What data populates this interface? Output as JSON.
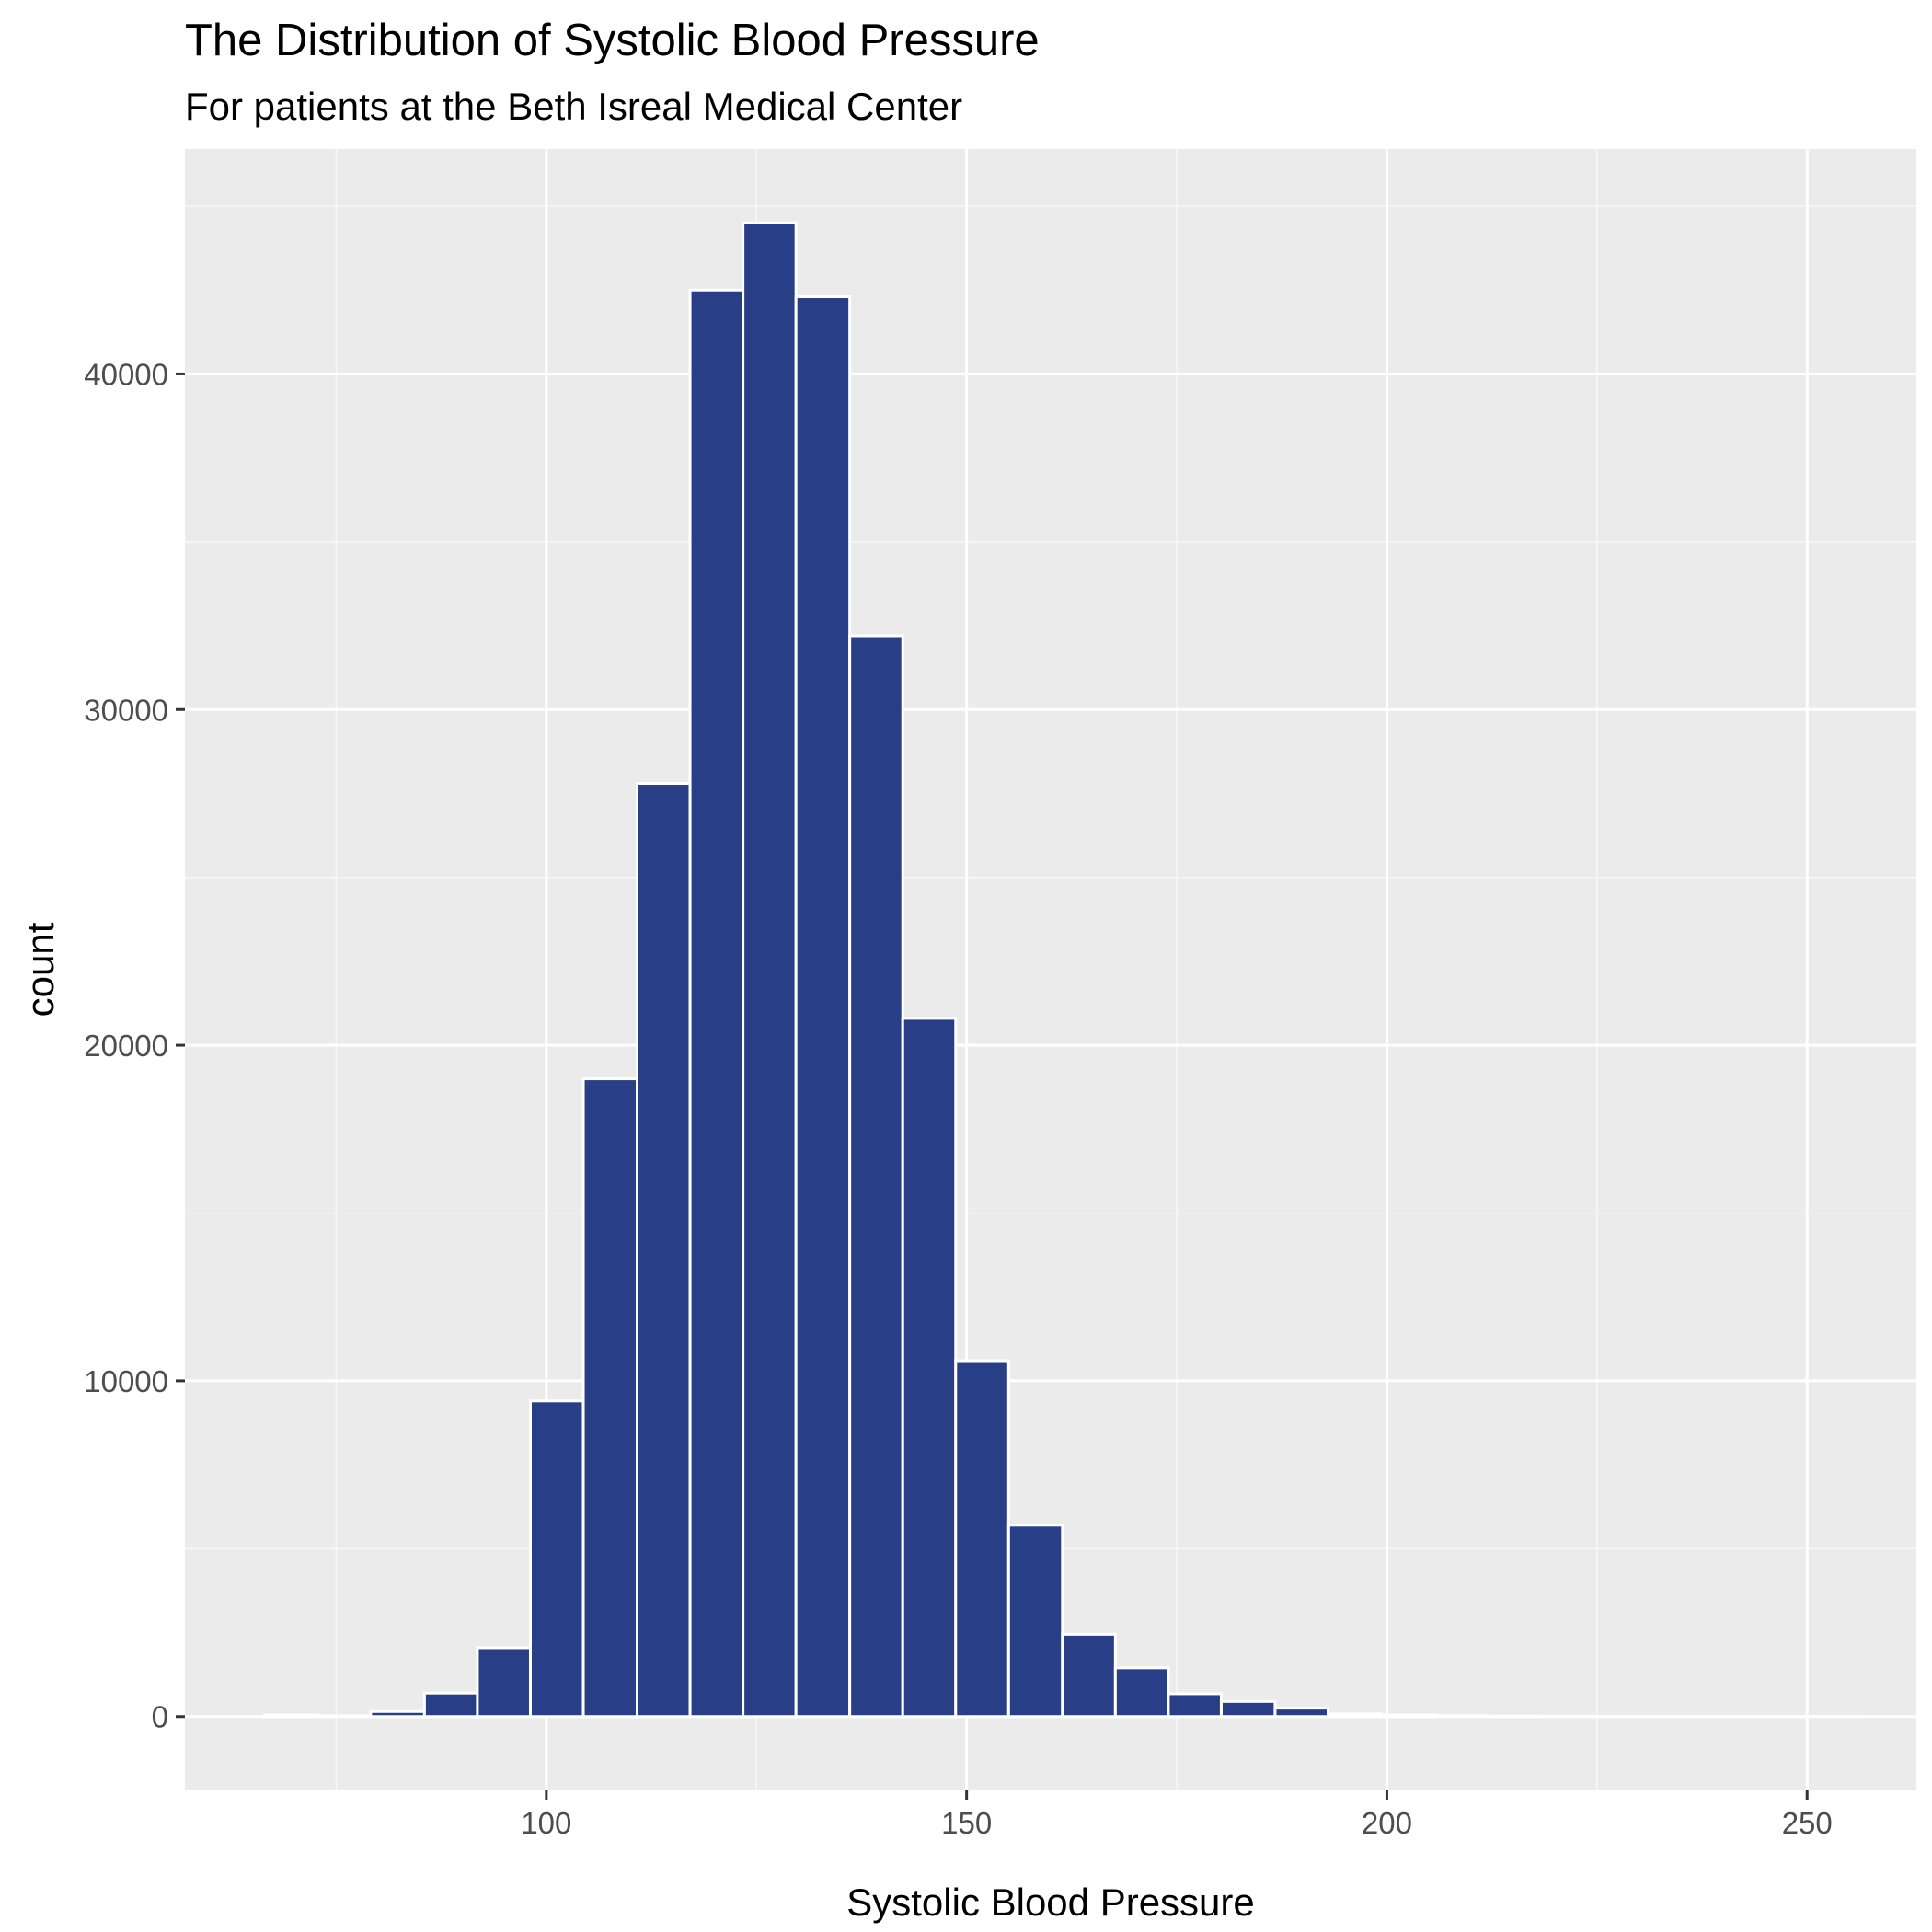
{
  "chart_data": {
    "type": "bar",
    "title": "The Distribution of Systolic Blood Pressure",
    "subtitle": "For patients at the Beth Isreal Medical Center",
    "xlabel": "Systolic Blood Pressure",
    "ylabel": "count",
    "bin_width": 6.32,
    "bins": [
      {
        "x0": 66.5,
        "x1": 72.8,
        "count": 50
      },
      {
        "x0": 72.8,
        "x1": 79.1,
        "count": 20
      },
      {
        "x0": 79.1,
        "x1": 85.5,
        "count": 150
      },
      {
        "x0": 85.5,
        "x1": 91.8,
        "count": 700
      },
      {
        "x0": 91.8,
        "x1": 98.1,
        "count": 2050
      },
      {
        "x0": 98.1,
        "x1": 104.4,
        "count": 9400
      },
      {
        "x0": 104.4,
        "x1": 110.8,
        "count": 19000
      },
      {
        "x0": 110.8,
        "x1": 117.1,
        "count": 27800
      },
      {
        "x0": 117.1,
        "x1": 123.4,
        "count": 42500
      },
      {
        "x0": 123.4,
        "x1": 129.7,
        "count": 44500
      },
      {
        "x0": 129.7,
        "x1": 136.1,
        "count": 42300
      },
      {
        "x0": 136.1,
        "x1": 142.4,
        "count": 32200
      },
      {
        "x0": 142.4,
        "x1": 148.7,
        "count": 20800
      },
      {
        "x0": 148.7,
        "x1": 155.0,
        "count": 10600
      },
      {
        "x0": 155.0,
        "x1": 161.4,
        "count": 5700
      },
      {
        "x0": 161.4,
        "x1": 167.7,
        "count": 2450
      },
      {
        "x0": 167.7,
        "x1": 174.0,
        "count": 1450
      },
      {
        "x0": 174.0,
        "x1": 180.3,
        "count": 680
      },
      {
        "x0": 180.3,
        "x1": 186.7,
        "count": 450
      },
      {
        "x0": 186.7,
        "x1": 193.0,
        "count": 250
      },
      {
        "x0": 193.0,
        "x1": 199.3,
        "count": 80
      },
      {
        "x0": 199.3,
        "x1": 205.6,
        "count": 50
      },
      {
        "x0": 205.6,
        "x1": 212.0,
        "count": 30
      },
      {
        "x0": 212.0,
        "x1": 218.3,
        "count": 15
      },
      {
        "x0": 218.3,
        "x1": 224.6,
        "count": 10
      },
      {
        "x0": 224.6,
        "x1": 230.9,
        "count": 5
      },
      {
        "x0": 230.9,
        "x1": 237.3,
        "count": 3
      },
      {
        "x0": 237.3,
        "x1": 243.6,
        "count": 2
      },
      {
        "x0": 243.6,
        "x1": 249.9,
        "count": 2
      },
      {
        "x0": 249.9,
        "x1": 256.2,
        "count": 1
      }
    ],
    "xlim": [
      57.0,
      263.0
    ],
    "ylim": [
      -2200,
      46700
    ],
    "x_ticks": [
      100,
      150,
      200,
      250
    ],
    "x_tick_labels": [
      "100",
      "150",
      "200",
      "250"
    ],
    "x_minor_ticks": [
      75,
      125,
      175,
      225
    ],
    "y_ticks": [
      0,
      10000,
      20000,
      30000,
      40000
    ],
    "y_tick_labels": [
      "0",
      "10000",
      "20000",
      "30000",
      "40000"
    ],
    "y_minor_ticks": [
      5000,
      15000,
      25000,
      35000,
      45000
    ],
    "grid": true,
    "legend": "none",
    "colors": {
      "bar_fill": "#283f87",
      "bar_outline": "#ffffff",
      "panel_background": "#ebebeb",
      "grid_major": "#ffffff",
      "grid_minor": "#f8f8f8",
      "tick_label": "#4d4d4d",
      "tick_mark": "#333333"
    }
  }
}
